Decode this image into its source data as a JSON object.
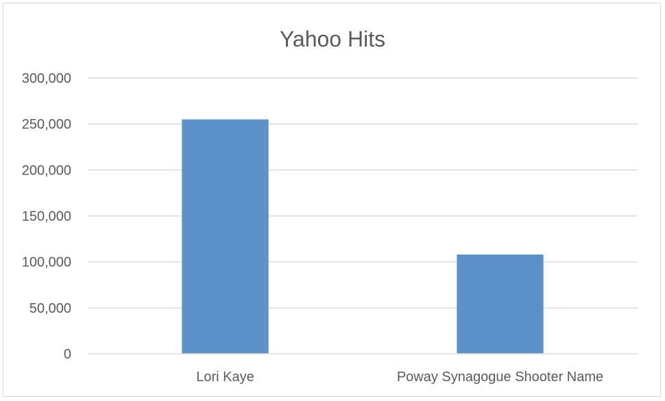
{
  "chart_data": {
    "type": "bar",
    "title": "Yahoo Hits",
    "xlabel": "",
    "ylabel": "",
    "categories": [
      "Lori Kaye",
      "Poway Synagogue Shooter Name"
    ],
    "series": [
      {
        "values": [
          255000,
          108000
        ],
        "color": "#5b93c8"
      }
    ],
    "ylim": [
      0,
      300000
    ],
    "yticks": [
      0,
      50000,
      100000,
      150000,
      200000,
      250000,
      300000
    ],
    "ytick_labels": [
      "0",
      "50,000",
      "100,000",
      "150,000",
      "200,000",
      "250,000",
      "300,000"
    ],
    "grid": true,
    "legend": "none"
  }
}
